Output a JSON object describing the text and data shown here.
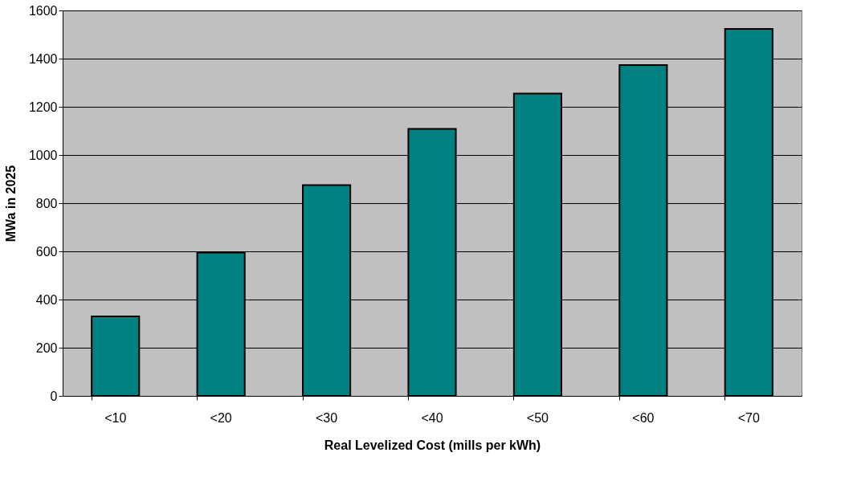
{
  "chart_data": {
    "type": "bar",
    "xlabel": "Real Levelized Cost (mills per kWh)",
    "ylabel": "MWa in 2025",
    "categories": [
      "<10",
      "<20",
      "<30",
      "<40",
      "<50",
      "<60",
      "<70"
    ],
    "values": [
      330,
      595,
      875,
      1108,
      1255,
      1373,
      1523
    ],
    "color": "#008080",
    "ylim": [
      0,
      1600
    ],
    "yticks": [
      0,
      200,
      400,
      600,
      800,
      1000,
      1200,
      1400,
      1600
    ],
    "grid": "y"
  }
}
